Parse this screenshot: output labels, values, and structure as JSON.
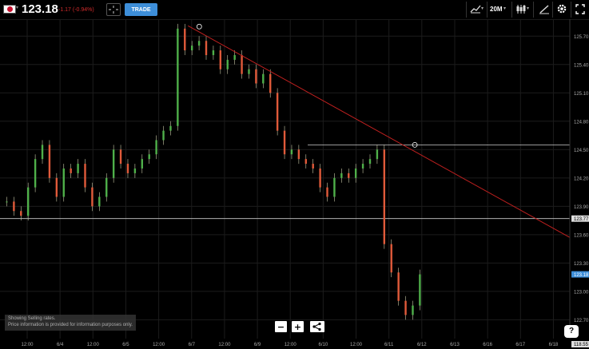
{
  "header": {
    "symbol_flag": "jp-flag-icon",
    "price": "123.18",
    "change": "-1.17 (-0.94%)",
    "trade_label": "TRADE",
    "timeframe": "20M"
  },
  "footer": {
    "disclaimer_line1": "Showing Selling rates.",
    "disclaimer_line2": "Price information is provided for information purposes only.",
    "zoom_out_label": "−",
    "zoom_in_label": "+",
    "help_label": "?"
  },
  "chart_data": {
    "type": "candlestick",
    "y_axis_ticks": [
      "125.70",
      "125.40",
      "125.10",
      "124.80",
      "124.50",
      "124.20",
      "123.90",
      "123.60",
      "123.30",
      "123.00",
      "122.70"
    ],
    "x_axis_ticks": [
      "12:00",
      "6/4",
      "12:00",
      "6/5",
      "12:00",
      "6/7",
      "12:00",
      "6/9",
      "12:00",
      "6/10",
      "12:00",
      "6/11",
      "6/12",
      "6/13",
      "6/16",
      "6/17",
      "6/18"
    ],
    "ylim": [
      122.5,
      125.88
    ],
    "price_labels": {
      "level": "123.77",
      "last": "123.18",
      "bottom": "118.55"
    },
    "horizontal_lines": [
      123.77,
      124.55
    ],
    "trendline": {
      "start": [
        0.33,
        125.81
      ],
      "end": [
        1.0,
        123.57
      ]
    },
    "closes": [
      123.95,
      123.85,
      123.8,
      124.1,
      124.4,
      124.55,
      124.2,
      124.0,
      124.3,
      124.25,
      124.35,
      124.1,
      123.9,
      124.0,
      124.2,
      124.5,
      124.35,
      124.25,
      124.3,
      124.4,
      124.45,
      124.6,
      124.7,
      124.75,
      125.78,
      125.55,
      125.6,
      125.65,
      125.5,
      125.55,
      125.35,
      125.45,
      125.5,
      125.3,
      125.35,
      125.2,
      125.3,
      125.1,
      124.7,
      124.45,
      124.5,
      124.4,
      124.35,
      124.3,
      124.1,
      124.0,
      124.2,
      124.25,
      124.2,
      124.3,
      124.35,
      124.4,
      124.5,
      123.5,
      123.2,
      122.9,
      122.75,
      122.85,
      123.18
    ]
  }
}
